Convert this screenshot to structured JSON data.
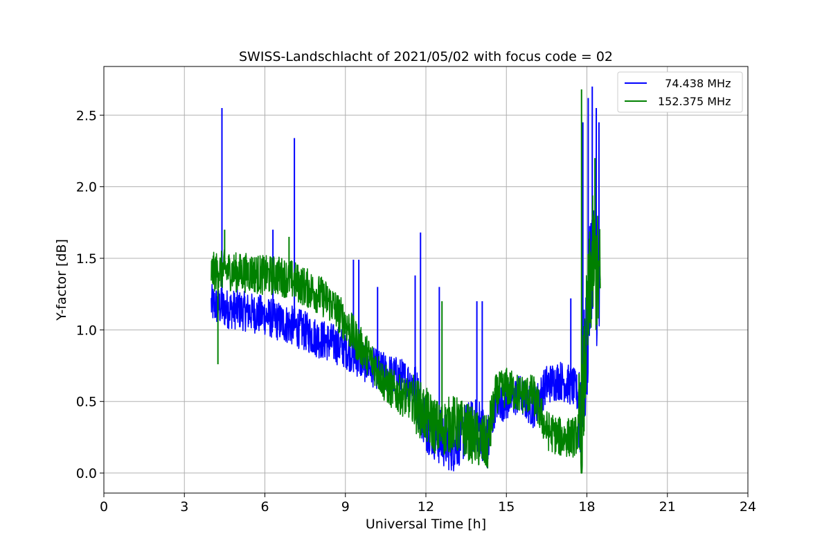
{
  "chart_data": {
    "type": "line",
    "title": "SWISS-Landschlacht of 2021/05/02 with focus code = 02",
    "xlabel": "Universal Time [h]",
    "ylabel": "Y-factor [dB]",
    "xlim": [
      0,
      24
    ],
    "ylim": [
      -0.14,
      2.84
    ],
    "xticks": [
      0,
      3,
      6,
      9,
      12,
      15,
      18,
      21,
      24
    ],
    "xtick_labels": [
      "0",
      "3",
      "6",
      "9",
      "12",
      "15",
      "18",
      "21",
      "24"
    ],
    "yticks": [
      0.0,
      0.5,
      1.0,
      1.5,
      2.0,
      2.5
    ],
    "ytick_labels": [
      "0.0",
      "0.5",
      "1.0",
      "1.5",
      "2.0",
      "2.5"
    ],
    "grid": true,
    "legend_position": "top-right",
    "series": [
      {
        "name": "  74.438 MHz",
        "color": "#0000ff",
        "x": [
          4.0,
          4.5,
          5.0,
          5.5,
          6.0,
          6.5,
          7.0,
          7.5,
          8.0,
          8.5,
          9.0,
          9.5,
          10.0,
          10.5,
          11.0,
          11.5,
          12.0,
          12.5,
          13.0,
          13.5,
          14.0,
          14.3,
          14.6,
          15.0,
          15.5,
          16.0,
          16.5,
          17.0,
          17.5,
          17.8,
          18.0,
          18.2,
          18.5
        ],
        "y": [
          1.18,
          1.15,
          1.14,
          1.12,
          1.1,
          1.06,
          1.03,
          0.99,
          0.94,
          0.91,
          0.87,
          0.8,
          0.74,
          0.7,
          0.67,
          0.63,
          0.35,
          0.25,
          0.2,
          0.3,
          0.33,
          0.2,
          0.5,
          0.5,
          0.55,
          0.45,
          0.62,
          0.65,
          0.6,
          0.5,
          0.9,
          1.6,
          1.1
        ],
        "spikes": [
          {
            "x": 4.4,
            "y": 2.55
          },
          {
            "x": 7.1,
            "y": 2.34
          },
          {
            "x": 6.3,
            "y": 1.7
          },
          {
            "x": 9.3,
            "y": 1.49
          },
          {
            "x": 9.5,
            "y": 1.49
          },
          {
            "x": 10.2,
            "y": 1.3
          },
          {
            "x": 11.8,
            "y": 1.68
          },
          {
            "x": 11.6,
            "y": 1.38
          },
          {
            "x": 12.5,
            "y": 1.3
          },
          {
            "x": 13.9,
            "y": 1.2
          },
          {
            "x": 14.1,
            "y": 1.2
          },
          {
            "x": 17.4,
            "y": 1.22
          },
          {
            "x": 17.85,
            "y": 2.45
          },
          {
            "x": 18.05,
            "y": 2.62
          },
          {
            "x": 18.2,
            "y": 2.7
          },
          {
            "x": 18.35,
            "y": 2.55
          },
          {
            "x": 18.45,
            "y": 2.45
          }
        ]
      },
      {
        "name": "152.375 MHz",
        "color": "#008000",
        "x": [
          4.0,
          4.5,
          5.0,
          5.5,
          6.0,
          6.5,
          7.0,
          7.5,
          8.0,
          8.5,
          9.0,
          9.5,
          10.0,
          10.5,
          11.0,
          11.5,
          12.0,
          12.5,
          13.0,
          13.5,
          14.0,
          14.3,
          14.6,
          15.0,
          15.5,
          16.0,
          16.5,
          17.0,
          17.5,
          17.8,
          18.0,
          18.2,
          18.5
        ],
        "y": [
          1.4,
          1.42,
          1.4,
          1.4,
          1.38,
          1.38,
          1.35,
          1.3,
          1.25,
          1.18,
          1.05,
          0.9,
          0.78,
          0.62,
          0.55,
          0.5,
          0.4,
          0.3,
          0.35,
          0.3,
          0.22,
          0.2,
          0.55,
          0.6,
          0.55,
          0.55,
          0.3,
          0.25,
          0.25,
          0.3,
          1.0,
          1.5,
          1.3
        ],
        "spikes": [
          {
            "x": 4.25,
            "y": 0.76
          },
          {
            "x": 4.5,
            "y": 1.7
          },
          {
            "x": 6.9,
            "y": 1.65
          },
          {
            "x": 12.6,
            "y": 1.2
          },
          {
            "x": 17.8,
            "y": 2.68
          },
          {
            "x": 18.3,
            "y": 2.2
          }
        ]
      }
    ]
  }
}
